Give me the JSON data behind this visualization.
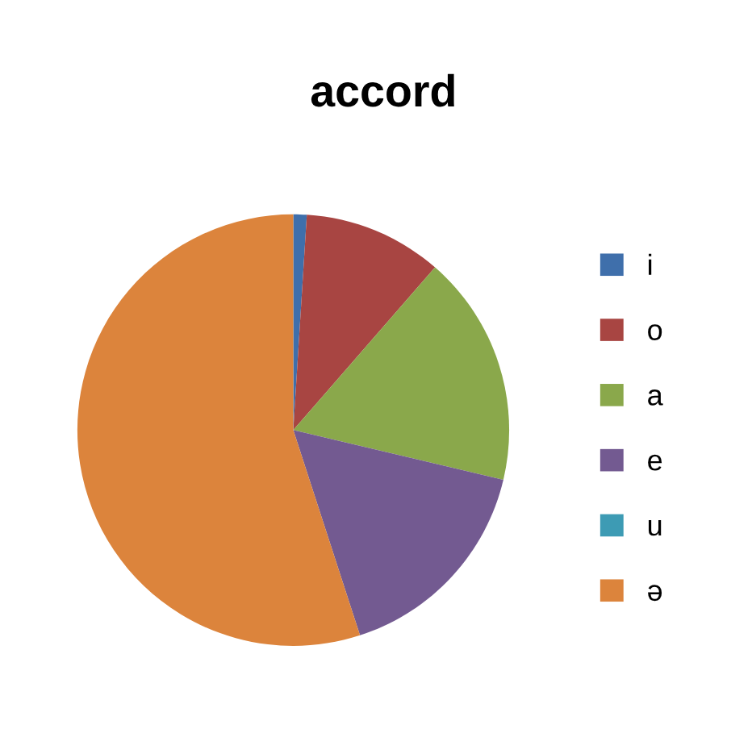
{
  "chart_data": {
    "type": "pie",
    "title": "accord",
    "categories": [
      "i",
      "o",
      "a",
      "e",
      "u",
      "ə"
    ],
    "values": [
      1,
      10.4,
      17.3,
      16.3,
      0,
      55
    ],
    "colors": [
      "#3f6fab",
      "#a84542",
      "#8aa84b",
      "#735a91",
      "#3d9bb4",
      "#dc843c"
    ],
    "legend": "right"
  }
}
